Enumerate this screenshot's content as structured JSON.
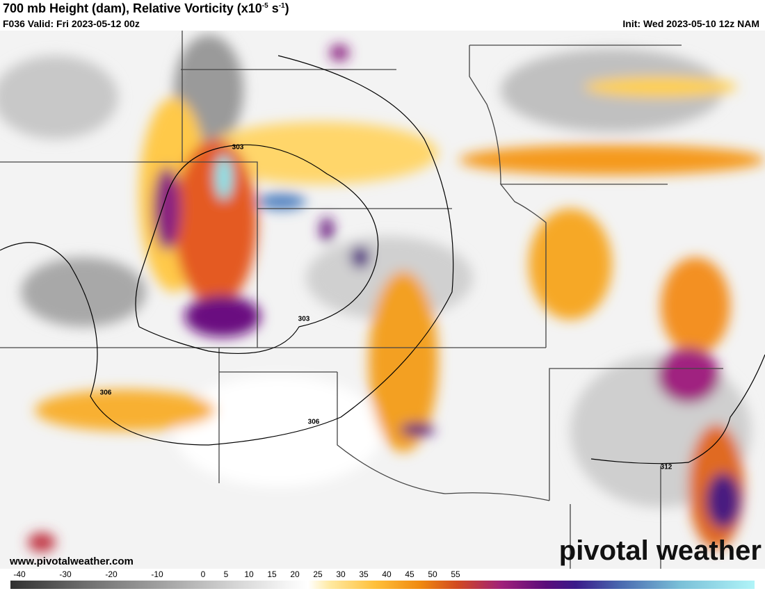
{
  "header": {
    "title": {
      "main": "700 mb Height (dam), Relative Vorticity (x10",
      "exp1": "-5",
      "unit": " s",
      "exp2": "-1",
      "close": ")"
    },
    "valid": "F036 Valid: Fri 2023-05-12 00z",
    "init": "Init: Wed 2023-05-10 12z NAM"
  },
  "map": {
    "contour_labels": [
      "303",
      "303",
      "306",
      "306",
      "312"
    ],
    "website": "www.pivotalweather.com",
    "watermark": "pivotal weather"
  },
  "colorbar": {
    "ticks": [
      -40,
      -30,
      -20,
      -10,
      0,
      5,
      10,
      15,
      20,
      25,
      30,
      35,
      40,
      45,
      50,
      55
    ]
  }
}
